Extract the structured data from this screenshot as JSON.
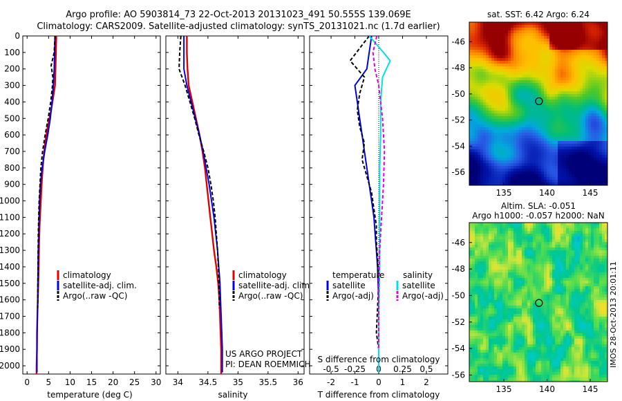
{
  "title_line1": "Argo profile: AO 5903814_73 22-Oct-2013 20131023_491 50.555S 139.069E",
  "title_line2": "Climatology: CARS2009. Satellite-adjusted climatology: synTS_20131021.nc (1.7d earlier)",
  "project_line1": "US ARGO PROJECT",
  "project_line2": "PI: DEAN ROEMMICH",
  "side_stamp": "IMOS 28-Oct-2013 20:01:11",
  "colors": {
    "climatology": "#e00000",
    "satellite": "#0000e0",
    "argo": "#000000",
    "satellite_s": "#00e0e0",
    "argo_s": "#e000e0"
  },
  "chart_data": [
    {
      "type": "line",
      "xlabel": "temperature (deg C)",
      "ylim": [
        2050,
        0
      ],
      "xlim": [
        -1,
        31
      ],
      "xticks": [
        0,
        5,
        10,
        15,
        20,
        25,
        30
      ],
      "yticks": [
        0,
        100,
        200,
        300,
        400,
        500,
        600,
        700,
        800,
        900,
        1000,
        1100,
        1200,
        1300,
        1400,
        1500,
        1600,
        1700,
        1800,
        1900,
        2000
      ],
      "legend": [
        "climatology",
        "satellite-adj. clim.",
        "Argo(..raw -QC)"
      ],
      "series": [
        {
          "name": "climatology",
          "x": [
            6.8,
            6.7,
            6.6,
            6.5,
            6.2,
            5.6,
            4.8,
            4.2,
            3.8,
            3.5,
            3.3,
            3.1,
            2.9,
            2.8,
            2.7,
            2.6,
            2.5,
            2.4,
            2.3,
            2.3,
            2.2,
            2.2
          ],
          "y": [
            0,
            100,
            200,
            300,
            350,
            450,
            550,
            650,
            750,
            850,
            950,
            1050,
            1150,
            1250,
            1400,
            1500,
            1600,
            1700,
            1800,
            1900,
            2000,
            2050
          ]
        },
        {
          "name": "satellite-adj. clim.",
          "x": [
            6.5,
            6.4,
            6.3,
            6.1,
            5.8,
            5.4,
            4.8,
            4.1,
            3.5,
            3.1,
            2.9,
            2.8,
            2.7,
            2.6,
            2.55,
            2.5,
            2.45,
            2.4,
            2.35,
            2.3,
            2.3
          ],
          "y": [
            0,
            100,
            200,
            300,
            400,
            500,
            600,
            700,
            800,
            900,
            1000,
            1100,
            1200,
            1300,
            1400,
            1500,
            1600,
            1700,
            1800,
            1900,
            2040
          ]
        },
        {
          "name": "Argo(..raw -QC)",
          "x": [
            6.5,
            6.3,
            5.6,
            6.0,
            5.9,
            5.5,
            4.9,
            4.2,
            3.6,
            3.2,
            3.0,
            2.8,
            2.7,
            2.6,
            2.55,
            2.5,
            2.45
          ],
          "y": [
            0,
            100,
            180,
            250,
            300,
            400,
            500,
            600,
            700,
            800,
            900,
            1000,
            1100,
            1200,
            1350,
            1500,
            1650
          ]
        }
      ]
    },
    {
      "type": "line",
      "xlabel": "salinity",
      "ylim": [
        2050,
        0
      ],
      "xlim": [
        33.8,
        36.1
      ],
      "xticks": [
        34,
        34.5,
        35,
        35.5,
        36
      ],
      "xticklabels": [
        "34",
        "34.5",
        "35",
        "35.5",
        "36"
      ],
      "legend": [
        "climatology",
        "satellite-adj. clim.",
        "Argo(..raw -QC)"
      ],
      "series": [
        {
          "name": "climatology",
          "x": [
            34.15,
            34.15,
            34.16,
            34.18,
            34.24,
            34.3,
            34.36,
            34.41,
            34.45,
            34.48,
            34.51,
            34.54,
            34.57,
            34.6,
            34.64,
            34.67,
            34.69,
            34.7,
            34.71,
            34.72,
            34.72
          ],
          "y": [
            0,
            100,
            200,
            300,
            400,
            500,
            600,
            700,
            800,
            900,
            1000,
            1100,
            1200,
            1300,
            1400,
            1500,
            1600,
            1700,
            1800,
            1900,
            2050
          ]
        },
        {
          "name": "satellite-adj. clim.",
          "x": [
            34.1,
            34.1,
            34.1,
            34.15,
            34.22,
            34.29,
            34.36,
            34.42,
            34.47,
            34.52,
            34.56,
            34.6,
            34.63,
            34.66,
            34.68,
            34.7,
            34.71,
            34.72,
            34.73,
            34.74,
            34.74
          ],
          "y": [
            0,
            100,
            200,
            300,
            400,
            500,
            600,
            700,
            800,
            900,
            1000,
            1100,
            1200,
            1300,
            1400,
            1500,
            1600,
            1700,
            1800,
            1900,
            2040
          ]
        },
        {
          "name": "Argo(..raw -QC)",
          "x": [
            34.05,
            34.03,
            34.02,
            34.12,
            34.2,
            34.28,
            34.35,
            34.43,
            34.5,
            34.55,
            34.59,
            34.62,
            34.64,
            34.66,
            34.68,
            34.69
          ],
          "y": [
            0,
            100,
            200,
            300,
            400,
            500,
            600,
            700,
            800,
            900,
            1000,
            1100,
            1200,
            1300,
            1450,
            1650
          ]
        }
      ]
    },
    {
      "type": "line",
      "xlabel": "T difference from climatology",
      "xlabel2": "S difference from climatology",
      "ylim": [
        2050,
        0
      ],
      "xlim": [
        -2.9,
        2.9
      ],
      "xticks": [
        -2,
        -1,
        0,
        1,
        2
      ],
      "xticks2": [
        -0.5,
        -0.25,
        0,
        0.25,
        0.5
      ],
      "xticks2_labels": [
        "-0.5",
        "-0.25",
        "0",
        "0.25",
        "0.5"
      ],
      "s_scale_factor": 4,
      "legend_headers": [
        "temperature",
        "salinity"
      ],
      "legend": [
        "satellite",
        "Argo(-adj)",
        "satellite",
        "Argo(-adj)"
      ],
      "series": [
        {
          "name": "satellite",
          "var": "temperature",
          "x": [
            -0.3,
            -0.4,
            -0.5,
            -1.0,
            -0.9,
            -0.8,
            -0.7,
            -0.6,
            -0.5,
            -0.4,
            -0.3,
            -0.2,
            -0.15,
            -0.1,
            -0.05,
            0,
            0
          ],
          "y": [
            0,
            100,
            200,
            300,
            400,
            500,
            600,
            700,
            800,
            900,
            1000,
            1100,
            1200,
            1300,
            1400,
            1600,
            2040
          ]
        },
        {
          "name": "Argo(-adj)",
          "var": "temperature",
          "x": [
            -0.4,
            -1.2,
            -0.6,
            -0.8,
            -0.9,
            -0.8,
            -0.6,
            -0.7,
            -0.5,
            -0.3,
            -0.2,
            -0.1,
            -0.1,
            -0.05,
            0,
            -0.1,
            0
          ],
          "y": [
            0,
            150,
            250,
            350,
            450,
            550,
            650,
            750,
            850,
            950,
            1050,
            1150,
            1250,
            1350,
            1500,
            1800,
            1900
          ]
        },
        {
          "name": "satellite",
          "var": "salinity",
          "x": [
            -0.1,
            0.05,
            0.12,
            0.04,
            0.02,
            0.02,
            0.01,
            0.01,
            0.01,
            0.01,
            0,
            0
          ],
          "y": [
            0,
            100,
            150,
            250,
            400,
            600,
            800,
            1000,
            1200,
            1400,
            1700,
            2040
          ]
        },
        {
          "name": "Argo(-adj)",
          "var": "salinity",
          "x": [
            -0.02,
            -0.06,
            -0.04,
            0.0,
            0.04,
            0.06,
            0.05,
            0.03,
            0.01,
            0,
            0,
            0
          ],
          "y": [
            0,
            100,
            200,
            300,
            500,
            700,
            900,
            1100,
            1300,
            1500,
            1700,
            1900
          ]
        }
      ]
    },
    {
      "type": "heatmap",
      "title": "sat. SST: 6.42  Argo: 6.24",
      "xlim": [
        131,
        147
      ],
      "ylim": [
        -57,
        -44.5
      ],
      "xticks": [
        135,
        140,
        145
      ],
      "yticks": [
        -46,
        -48,
        -50,
        -52,
        -54,
        -56
      ],
      "marker": {
        "lon": 139.07,
        "lat": -50.56
      }
    },
    {
      "type": "heatmap",
      "title": "Altim. SLA: -0.051",
      "subtitle": "Argo h1000: -0.057  h2000: NaN",
      "xlim": [
        131,
        147
      ],
      "ylim": [
        -56.5,
        -44.5
      ],
      "xticks": [
        135,
        140,
        145
      ],
      "yticks": [
        -46,
        -48,
        -50,
        -52,
        -54,
        -56
      ],
      "marker": {
        "lon": 139.07,
        "lat": -50.56
      }
    }
  ]
}
